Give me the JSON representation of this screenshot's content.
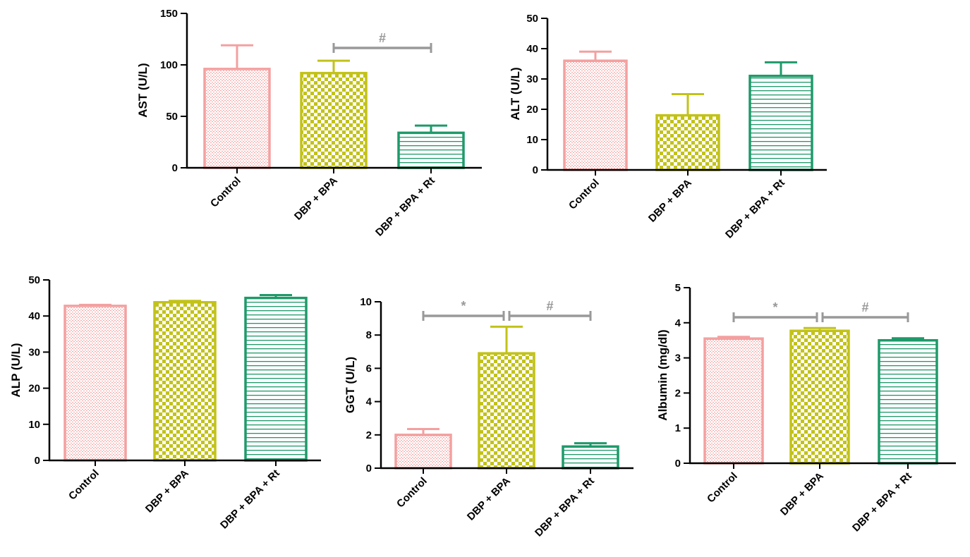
{
  "chart_data": [
    {
      "type": "bar",
      "title": "",
      "xlabel": "",
      "ylabel": "AST (U/L)",
      "categories": [
        "Control",
        "DBP + BPA",
        "DBP + BPA + Rt"
      ],
      "values": [
        96,
        92,
        34
      ],
      "errors": [
        23,
        12,
        7
      ],
      "ylim": [
        0,
        150
      ],
      "yticks": [
        "0",
        "50",
        "100",
        "150"
      ],
      "significance": [
        {
          "from": 1,
          "to": 2,
          "label": "#"
        }
      ]
    },
    {
      "type": "bar",
      "title": "",
      "xlabel": "",
      "ylabel": "ALT (U/L)",
      "categories": [
        "Control",
        "DBP + BPA",
        "DBP + BPA + Rt"
      ],
      "values": [
        36,
        18,
        31
      ],
      "errors": [
        3,
        7,
        4.5
      ],
      "ylim": [
        0,
        50
      ],
      "yticks": [
        "0",
        "10",
        "20",
        "30",
        "40",
        "50"
      ],
      "significance": []
    },
    {
      "type": "bar",
      "title": "",
      "xlabel": "",
      "ylabel": "ALP (U/L)",
      "categories": [
        "Control",
        "DBP + BPA",
        "DBP + BPA + Rt"
      ],
      "values": [
        42.8,
        43.8,
        45
      ],
      "errors": [
        0.3,
        0.4,
        0.8
      ],
      "ylim": [
        0,
        50
      ],
      "yticks": [
        "0",
        "10",
        "20",
        "30",
        "40",
        "50"
      ],
      "significance": []
    },
    {
      "type": "bar",
      "title": "",
      "xlabel": "",
      "ylabel": "GGT (U/L)",
      "categories": [
        "Control",
        "DBP + BPA",
        "DBP + BPA + Rt"
      ],
      "values": [
        2.0,
        6.9,
        1.3
      ],
      "errors": [
        0.35,
        1.6,
        0.2
      ],
      "ylim": [
        0,
        10
      ],
      "yticks": [
        "0",
        "2",
        "4",
        "6",
        "8",
        "10"
      ],
      "significance": [
        {
          "from": 0,
          "to": 1,
          "label": "*"
        },
        {
          "from": 1,
          "to": 2,
          "label": "#"
        }
      ]
    },
    {
      "type": "bar",
      "title": "",
      "xlabel": "",
      "ylabel": "Albumin (mg/dl)",
      "categories": [
        "Control",
        "DBP + BPA",
        "DBP + BPA + Rt"
      ],
      "values": [
        3.55,
        3.77,
        3.5
      ],
      "errors": [
        0.05,
        0.08,
        0.06
      ],
      "ylim": [
        0,
        5
      ],
      "yticks": [
        "0",
        "1",
        "2",
        "3",
        "4",
        "5"
      ],
      "significance": [
        {
          "from": 0,
          "to": 1,
          "label": "*"
        },
        {
          "from": 1,
          "to": 2,
          "label": "#"
        }
      ]
    }
  ],
  "colors": {
    "control": "#f4a0a0",
    "dbp_bpa": "#c2c21a",
    "dbp_bpa_rt": "#1e9a6a",
    "significance": "#999999"
  }
}
